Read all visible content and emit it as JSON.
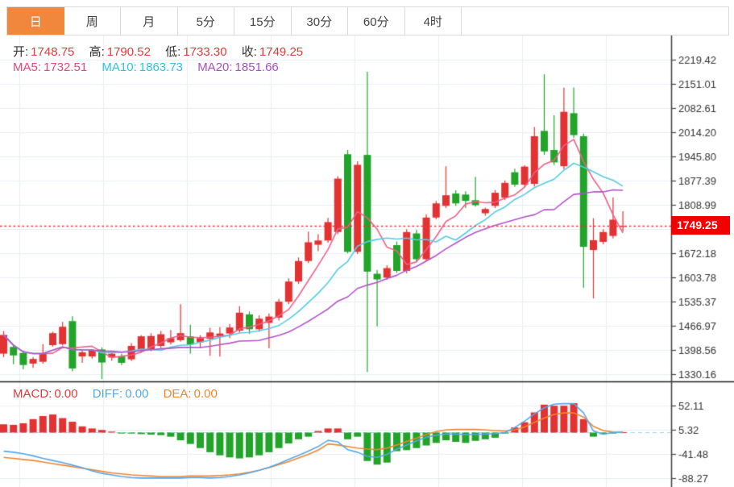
{
  "tabs": {
    "items": [
      {
        "name": "day",
        "label": "日",
        "active": true
      },
      {
        "name": "week",
        "label": "周",
        "active": false
      },
      {
        "name": "month",
        "label": "月",
        "active": false
      },
      {
        "name": "5min",
        "label": "5分",
        "active": false
      },
      {
        "name": "15min",
        "label": "15分",
        "active": false
      },
      {
        "name": "30min",
        "label": "30分",
        "active": false
      },
      {
        "name": "60min",
        "label": "60分",
        "active": false
      },
      {
        "name": "4hour",
        "label": "4时",
        "active": false
      }
    ]
  },
  "info_bar": {
    "open_label": "开:",
    "open": "1748.75",
    "high_label": "高:",
    "high": "1790.52",
    "low_label": "低:",
    "low": "1733.30",
    "close_label": "收:",
    "close": "1749.25"
  },
  "ma_bar": {
    "ma5_label": "MA5:",
    "ma5": "1732.51",
    "ma10_label": "MA10:",
    "ma10": "1863.73",
    "ma20_label": "MA20:",
    "ma20": "1851.66"
  },
  "macd_bar": {
    "macd_label": "MACD:",
    "macd": "0.00",
    "diff_label": "DIFF:",
    "diff": "0.00",
    "dea_label": "DEA:",
    "dea": "0.00"
  },
  "price_tag": "1749.25",
  "colors": {
    "up": "#e23232",
    "down": "#22a32a",
    "ma5": "#ed6089",
    "ma10": "#55cbe4",
    "ma20": "#b153c8",
    "diff": "#54a7e8",
    "dea": "#f0862d",
    "grid": "#e9eef5",
    "axis": "#444444",
    "tick_text": "#333333",
    "last_price_line": "#f03030",
    "tag_bg": "#f20000",
    "macd_zero_dash": "#9fd4e8",
    "panel_divider": "#222222",
    "tab_active_bg": "#f0873c"
  },
  "chart_data": [
    {
      "type": "candlestick",
      "title": "",
      "ylabel": "price",
      "legend": [
        "MA5",
        "MA10",
        "MA20"
      ],
      "grid": true,
      "last_price": 1749.25,
      "price_ticks": [
        2219.42,
        2151.01,
        2082.61,
        2014.2,
        1945.8,
        1877.39,
        1808.99,
        1672.18,
        1603.78,
        1535.37,
        1466.97,
        1398.56,
        1330.16
      ],
      "axis_top_value": 2219.42,
      "tick_step_value": 68.405,
      "ma_periods": [
        5,
        10,
        20
      ],
      "candles_ohlc": [
        [
          1388,
          1452,
          1378,
          1441
        ],
        [
          1407,
          1412,
          1358,
          1383
        ],
        [
          1390,
          1396,
          1344,
          1356
        ],
        [
          1360,
          1378,
          1348,
          1373
        ],
        [
          1365,
          1415,
          1360,
          1388
        ],
        [
          1412,
          1450,
          1408,
          1446
        ],
        [
          1415,
          1478,
          1411,
          1464
        ],
        [
          1480,
          1494,
          1338,
          1346
        ],
        [
          1380,
          1396,
          1362,
          1392
        ],
        [
          1380,
          1400,
          1374,
          1398
        ],
        [
          1400,
          1406,
          1316,
          1363
        ],
        [
          1377,
          1392,
          1368,
          1388
        ],
        [
          1380,
          1388,
          1356,
          1362
        ],
        [
          1372,
          1418,
          1367,
          1410
        ],
        [
          1398,
          1440,
          1394,
          1437
        ],
        [
          1400,
          1446,
          1395,
          1438
        ],
        [
          1410,
          1452,
          1404,
          1443
        ],
        [
          1420,
          1455,
          1414,
          1432
        ],
        [
          1426,
          1528,
          1422,
          1446
        ],
        [
          1437,
          1470,
          1388,
          1414
        ],
        [
          1420,
          1440,
          1404,
          1432
        ],
        [
          1430,
          1461,
          1382,
          1448
        ],
        [
          1438,
          1463,
          1380,
          1445
        ],
        [
          1445,
          1472,
          1432,
          1462
        ],
        [
          1453,
          1522,
          1448,
          1504
        ],
        [
          1499,
          1507,
          1444,
          1457
        ],
        [
          1457,
          1496,
          1450,
          1487
        ],
        [
          1475,
          1502,
          1403,
          1493
        ],
        [
          1490,
          1543,
          1482,
          1535
        ],
        [
          1535,
          1601,
          1528,
          1592
        ],
        [
          1592,
          1660,
          1585,
          1650
        ],
        [
          1650,
          1733,
          1644,
          1703
        ],
        [
          1696,
          1726,
          1678,
          1708
        ],
        [
          1708,
          1772,
          1702,
          1760
        ],
        [
          1732,
          1890,
          1726,
          1883
        ],
        [
          1952,
          1964,
          1672,
          1676
        ],
        [
          1676,
          1932,
          1670,
          1922
        ],
        [
          1950,
          2185,
          1336,
          1620
        ],
        [
          1614,
          1625,
          1465,
          1598
        ],
        [
          1603,
          1638,
          1597,
          1630
        ],
        [
          1695,
          1705,
          1616,
          1622
        ],
        [
          1622,
          1740,
          1615,
          1732
        ],
        [
          1728,
          1738,
          1648,
          1655
        ],
        [
          1655,
          1782,
          1650,
          1773
        ],
        [
          1773,
          1820,
          1768,
          1813
        ],
        [
          1806,
          1918,
          1800,
          1836
        ],
        [
          1841,
          1850,
          1806,
          1813
        ],
        [
          1838,
          1847,
          1800,
          1820
        ],
        [
          1822,
          1888,
          1804,
          1808
        ],
        [
          1785,
          1801,
          1778,
          1797
        ],
        [
          1806,
          1851,
          1800,
          1843
        ],
        [
          1829,
          1878,
          1822,
          1871
        ],
        [
          1901,
          1911,
          1860,
          1866
        ],
        [
          1866,
          1921,
          1858,
          1917
        ],
        [
          1868,
          2029,
          1861,
          2003
        ],
        [
          2018,
          2178,
          1950,
          1960
        ],
        [
          1964,
          2062,
          1922,
          1929
        ],
        [
          1918,
          2140,
          1910,
          2072
        ],
        [
          2068,
          2141,
          1998,
          2006
        ],
        [
          2003,
          2010,
          1574,
          1690
        ],
        [
          1681,
          1771,
          1544,
          1709
        ],
        [
          1704,
          1740,
          1697,
          1732
        ],
        [
          1721,
          1830,
          1714,
          1767
        ],
        [
          1748.75,
          1790.52,
          1733.3,
          1749.25
        ]
      ]
    },
    {
      "type": "bar",
      "title": "MACD(12,26,9)",
      "ticks": [
        52.11,
        5.32,
        -41.48,
        -88.27
      ],
      "zero_value": 0,
      "tick_step_value": 46.79,
      "hist": [
        16,
        15,
        18,
        26,
        32,
        35,
        28,
        21,
        12,
        8,
        5,
        2,
        -1,
        -2,
        -3,
        -4,
        -5,
        -8,
        -15,
        -22,
        -30,
        -38,
        -44,
        -48,
        -50,
        -48,
        -44,
        -38,
        -30,
        -21,
        -13,
        -8,
        3,
        8,
        8,
        -13,
        -8,
        -55,
        -62,
        -58,
        -36,
        -34,
        -30,
        -25,
        -20,
        -15,
        -18,
        -20,
        -16,
        -13,
        -10,
        -2,
        10,
        20,
        39,
        54,
        52,
        52,
        57,
        26,
        -8,
        -3,
        -1,
        1
      ],
      "diff": [
        -36,
        -38,
        -41,
        -45,
        -50,
        -54,
        -58,
        -63,
        -68,
        -74,
        -79,
        -82,
        -85,
        -87,
        -88,
        -88,
        -88,
        -88,
        -88,
        -87,
        -87,
        -88,
        -87,
        -85,
        -82,
        -78,
        -73,
        -67,
        -60,
        -52,
        -44,
        -36,
        -27,
        -15,
        -18,
        -33,
        -38,
        -46,
        -48,
        -42,
        -32,
        -24,
        -16,
        -9,
        -5,
        -3,
        -3,
        -4,
        -4,
        -3,
        -2,
        0,
        10,
        22,
        36,
        48,
        55,
        56,
        56,
        38,
        3,
        -3,
        0,
        1
      ],
      "dea": [
        -48,
        -50,
        -52,
        -54,
        -57,
        -60,
        -63,
        -66,
        -69,
        -72,
        -75,
        -78,
        -80,
        -82,
        -83,
        -84,
        -85,
        -85,
        -85,
        -84,
        -84,
        -84,
        -83,
        -82,
        -80,
        -77,
        -73,
        -68,
        -62,
        -56,
        -49,
        -42,
        -34,
        -22,
        -24,
        -27,
        -30,
        -32,
        -33,
        -30,
        -24,
        -17,
        -11,
        -4,
        2,
        5,
        6,
        6,
        6,
        5,
        4,
        3,
        5,
        11,
        20,
        28,
        35,
        38,
        38,
        30,
        12,
        4,
        1,
        0
      ]
    }
  ]
}
